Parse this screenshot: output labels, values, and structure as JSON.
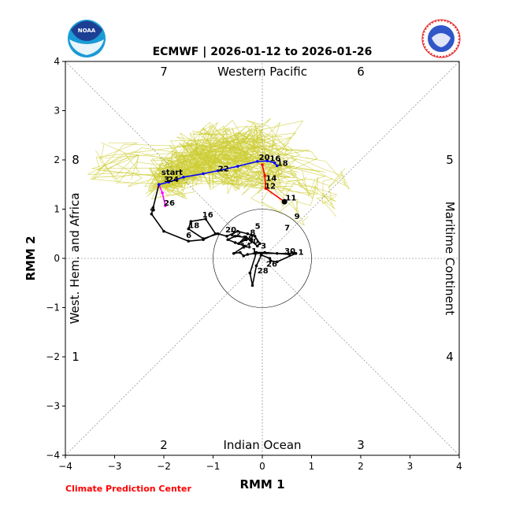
{
  "chart_data": {
    "type": "line",
    "title": "ECMWF | 2026-01-12 to 2026-01-26",
    "xlabel": "RMM 1",
    "ylabel": "RMM 2",
    "xlim": [
      -4,
      4
    ],
    "ylim": [
      -4,
      4
    ],
    "ticks": [
      -4,
      -3,
      -2,
      -1,
      0,
      1,
      2,
      3,
      4
    ],
    "region_labels": {
      "top": "Western Pacific",
      "bottom": "Indian Ocean",
      "left": "West. Hem. and Africa",
      "right": "Maritime Continent"
    },
    "phase_numbers": [
      "1",
      "2",
      "3",
      "4",
      "5",
      "6",
      "7",
      "8"
    ],
    "credit": "Climate Prediction Center",
    "logos": {
      "left": "NOAA",
      "right": "NATIONAL WEATHER SERVICE"
    },
    "observed": {
      "color": "#000000",
      "points": [
        [
          0.68,
          0.1
        ],
        [
          0.3,
          -0.07
        ],
        [
          0.17,
          -0.05
        ],
        [
          0.15,
          0.0
        ],
        [
          -0.02,
          0.07
        ],
        [
          -0.12,
          -0.15
        ],
        [
          -0.2,
          -0.55
        ],
        [
          -0.25,
          -0.3
        ],
        [
          -0.12,
          0.12
        ],
        [
          0.05,
          0.12
        ],
        [
          0.3,
          0.1
        ],
        [
          0.55,
          0.08
        ],
        [
          0.6,
          0.12
        ],
        [
          0.68,
          0.1
        ],
        [
          -0.15,
          0.1
        ],
        [
          -0.3,
          0.08
        ],
        [
          -0.38,
          0.05
        ],
        [
          -0.45,
          0.12
        ],
        [
          -0.58,
          0.1
        ],
        [
          -0.35,
          0.25
        ],
        [
          -0.55,
          0.32
        ],
        [
          -0.7,
          0.38
        ],
        [
          -0.55,
          0.45
        ],
        [
          -0.35,
          0.43
        ],
        [
          -0.48,
          0.3
        ],
        [
          -0.3,
          0.4
        ],
        [
          -0.22,
          0.35
        ],
        [
          -0.1,
          0.25
        ],
        [
          -0.05,
          0.3
        ],
        [
          -0.15,
          0.45
        ],
        [
          -0.3,
          0.5
        ],
        [
          -0.5,
          0.55
        ],
        [
          -0.72,
          0.45
        ],
        [
          -0.9,
          0.5
        ],
        [
          -1.2,
          0.4
        ],
        [
          -1.5,
          0.6
        ],
        [
          -1.45,
          0.75
        ],
        [
          -1.15,
          0.8
        ],
        [
          -0.95,
          0.5
        ],
        [
          -1.2,
          0.38
        ],
        [
          -1.5,
          0.35
        ],
        [
          -2.0,
          0.55
        ],
        [
          -2.25,
          0.9
        ],
        [
          -2.1,
          1.5
        ]
      ],
      "labels": [
        {
          "t": "1",
          "x": 0.73,
          "y": 0.07
        },
        {
          "t": "30",
          "x": 0.45,
          "y": 0.1
        },
        {
          "t": "26",
          "x": 0.08,
          "y": -0.17
        },
        {
          "t": "28",
          "x": -0.1,
          "y": -0.3
        },
        {
          "t": "3",
          "x": -0.03,
          "y": 0.2
        },
        {
          "t": "1",
          "x": -0.22,
          "y": 0.1
        },
        {
          "t": "14",
          "x": -0.45,
          "y": 0.2
        },
        {
          "t": "30",
          "x": -0.3,
          "y": 0.3
        },
        {
          "t": "28",
          "x": -0.4,
          "y": 0.35
        },
        {
          "t": "22",
          "x": -0.65,
          "y": 0.45
        },
        {
          "t": "20",
          "x": -0.75,
          "y": 0.53
        },
        {
          "t": "8",
          "x": -0.25,
          "y": 0.47
        },
        {
          "t": "5",
          "x": -0.15,
          "y": 0.6
        },
        {
          "t": "7",
          "x": 0.45,
          "y": 0.57
        },
        {
          "t": "9",
          "x": 0.65,
          "y": 0.8
        },
        {
          "t": "6",
          "x": -1.55,
          "y": 0.42
        },
        {
          "t": "18",
          "x": -1.5,
          "y": 0.62
        },
        {
          "t": "16",
          "x": -1.22,
          "y": 0.83
        },
        {
          "t": "4",
          "x": -2.28,
          "y": 0.95
        },
        {
          "t": "3",
          "x": -2.0,
          "y": 1.55
        },
        {
          "t": "start",
          "x": -2.05,
          "y": 1.7
        }
      ]
    },
    "forecast_segments": [
      {
        "color": "#ff00ff",
        "points": [
          [
            -2.1,
            1.5
          ],
          [
            -2.03,
            1.33
          ],
          [
            -1.97,
            1.07
          ]
        ]
      },
      {
        "color": "#0000ff",
        "points": [
          [
            -2.1,
            1.5
          ],
          [
            -1.9,
            1.55
          ],
          [
            -1.6,
            1.65
          ],
          [
            -1.2,
            1.72
          ],
          [
            -0.9,
            1.78
          ],
          [
            -0.5,
            1.87
          ],
          [
            -0.1,
            1.97
          ],
          [
            0.1,
            1.98
          ],
          [
            0.25,
            1.94
          ],
          [
            0.3,
            1.88
          ]
        ]
      },
      {
        "color": "#ff0000",
        "points": [
          [
            0.0,
            1.9
          ],
          [
            0.05,
            1.68
          ],
          [
            0.07,
            1.42
          ],
          [
            0.45,
            1.15
          ]
        ]
      }
    ],
    "forecast_labels": [
      {
        "t": "24",
        "x": -1.92,
        "y": 1.55
      },
      {
        "t": "26",
        "x": -2.0,
        "y": 1.07
      },
      {
        "t": "22",
        "x": -0.9,
        "y": 1.77
      },
      {
        "t": "20",
        "x": -0.07,
        "y": 2.0
      },
      {
        "t": "16",
        "x": 0.15,
        "y": 1.98
      },
      {
        "t": "18",
        "x": 0.3,
        "y": 1.88
      },
      {
        "t": "14",
        "x": 0.07,
        "y": 1.58
      },
      {
        "t": "12",
        "x": 0.05,
        "y": 1.42
      },
      {
        "t": "11",
        "x": 0.47,
        "y": 1.18
      }
    ],
    "ensemble_color": "#cccc33",
    "ensemble_members": 50,
    "grid": "diagonal dashed phase lines",
    "legend": "none"
  }
}
